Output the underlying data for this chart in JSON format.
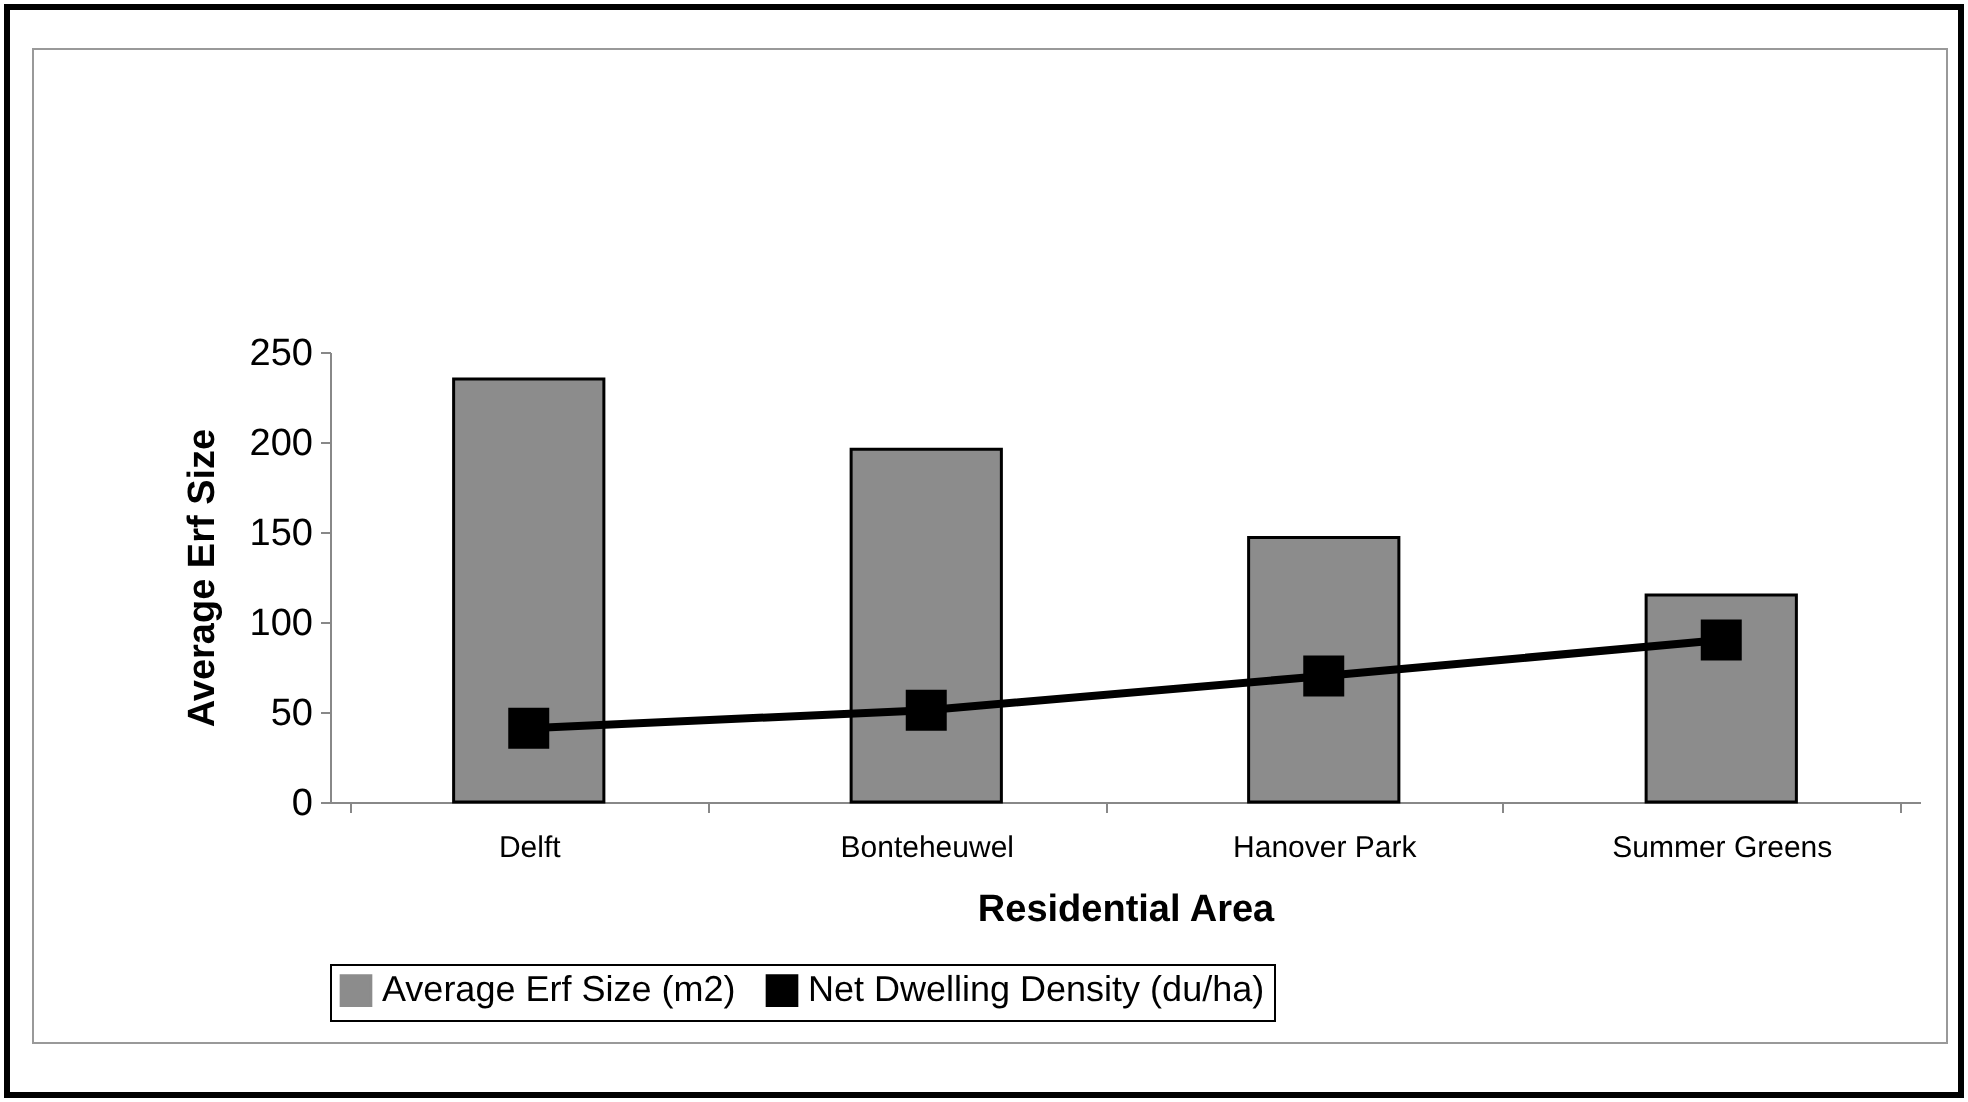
{
  "chart_data": {
    "type": "bar",
    "xlabel": "Residential Area",
    "ylabel": "Average Erf Size",
    "categories": [
      "Delft",
      "Bonteheuwel",
      "Hanover Park",
      "Summer Greens"
    ],
    "series": [
      {
        "name": "Average Erf Size (m2)",
        "color": "#8c8c8c",
        "values": [
          235,
          196,
          147,
          115
        ]
      },
      {
        "name": "Net Dwelling Density (du/ha)",
        "type": "line",
        "color": "#000000",
        "marker": "square",
        "values": [
          41,
          51,
          70,
          90
        ]
      }
    ],
    "ylim": [
      0,
      250
    ],
    "yticks": [
      0,
      50,
      100,
      150,
      200,
      250
    ],
    "grid": false,
    "legend": "bottom"
  }
}
